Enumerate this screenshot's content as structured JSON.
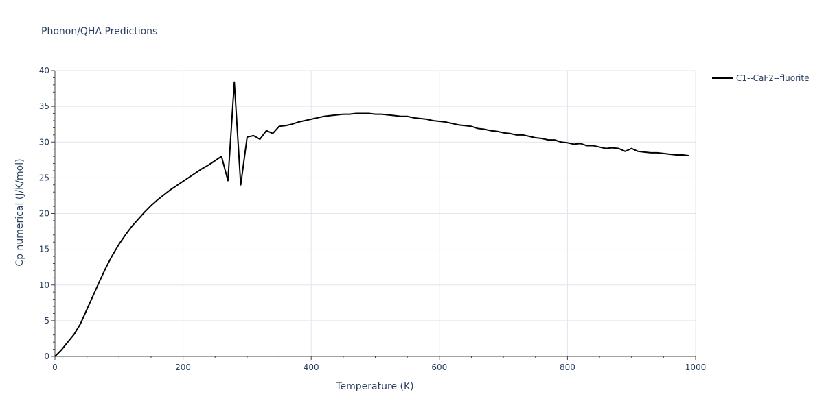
{
  "chart_data": {
    "type": "line",
    "title": "Phonon/QHA Predictions",
    "xlabel": "Temperature (K)",
    "ylabel": "Cp numerical (J/K/mol)",
    "xlim": [
      0,
      1000
    ],
    "ylim": [
      0,
      40
    ],
    "x_ticks": [
      0,
      200,
      400,
      600,
      800,
      1000
    ],
    "y_ticks": [
      0,
      5,
      10,
      15,
      20,
      25,
      30,
      35,
      40
    ],
    "grid": true,
    "legend_position": "top-right",
    "series": [
      {
        "name": "C1--CaF2--fluorite",
        "color": "#000000",
        "points": [
          [
            0,
            0
          ],
          [
            10,
            0.9
          ],
          [
            20,
            2.0
          ],
          [
            30,
            3.1
          ],
          [
            40,
            4.6
          ],
          [
            50,
            6.6
          ],
          [
            60,
            8.6
          ],
          [
            70,
            10.6
          ],
          [
            80,
            12.5
          ],
          [
            90,
            14.2
          ],
          [
            100,
            15.7
          ],
          [
            110,
            17.0
          ],
          [
            120,
            18.2
          ],
          [
            130,
            19.2
          ],
          [
            140,
            20.2
          ],
          [
            150,
            21.1
          ],
          [
            160,
            21.9
          ],
          [
            170,
            22.6
          ],
          [
            180,
            23.3
          ],
          [
            190,
            23.9
          ],
          [
            200,
            24.5
          ],
          [
            210,
            25.1
          ],
          [
            220,
            25.7
          ],
          [
            230,
            26.3
          ],
          [
            240,
            26.8
          ],
          [
            250,
            27.4
          ],
          [
            260,
            28.0
          ],
          [
            270,
            24.6
          ],
          [
            280,
            38.4
          ],
          [
            290,
            24.0
          ],
          [
            300,
            30.7
          ],
          [
            310,
            30.9
          ],
          [
            320,
            30.4
          ],
          [
            330,
            31.6
          ],
          [
            340,
            31.2
          ],
          [
            350,
            32.2
          ],
          [
            360,
            32.3
          ],
          [
            370,
            32.5
          ],
          [
            380,
            32.8
          ],
          [
            390,
            33.0
          ],
          [
            400,
            33.2
          ],
          [
            410,
            33.4
          ],
          [
            420,
            33.6
          ],
          [
            430,
            33.7
          ],
          [
            440,
            33.8
          ],
          [
            450,
            33.9
          ],
          [
            460,
            33.9
          ],
          [
            470,
            34.0
          ],
          [
            480,
            34.0
          ],
          [
            490,
            34.0
          ],
          [
            500,
            33.9
          ],
          [
            510,
            33.9
          ],
          [
            520,
            33.8
          ],
          [
            530,
            33.7
          ],
          [
            540,
            33.6
          ],
          [
            550,
            33.6
          ],
          [
            560,
            33.4
          ],
          [
            570,
            33.3
          ],
          [
            580,
            33.2
          ],
          [
            590,
            33.0
          ],
          [
            600,
            32.9
          ],
          [
            610,
            32.8
          ],
          [
            620,
            32.6
          ],
          [
            630,
            32.4
          ],
          [
            640,
            32.3
          ],
          [
            650,
            32.2
          ],
          [
            660,
            31.9
          ],
          [
            670,
            31.8
          ],
          [
            680,
            31.6
          ],
          [
            690,
            31.5
          ],
          [
            700,
            31.3
          ],
          [
            710,
            31.2
          ],
          [
            720,
            31.0
          ],
          [
            730,
            31.0
          ],
          [
            740,
            30.8
          ],
          [
            750,
            30.6
          ],
          [
            760,
            30.5
          ],
          [
            770,
            30.3
          ],
          [
            780,
            30.3
          ],
          [
            790,
            30.0
          ],
          [
            800,
            29.9
          ],
          [
            810,
            29.7
          ],
          [
            820,
            29.8
          ],
          [
            830,
            29.5
          ],
          [
            840,
            29.5
          ],
          [
            850,
            29.3
          ],
          [
            860,
            29.1
          ],
          [
            870,
            29.2
          ],
          [
            880,
            29.1
          ],
          [
            890,
            28.7
          ],
          [
            900,
            29.1
          ],
          [
            910,
            28.7
          ],
          [
            920,
            28.6
          ],
          [
            930,
            28.5
          ],
          [
            940,
            28.5
          ],
          [
            950,
            28.4
          ],
          [
            960,
            28.3
          ],
          [
            970,
            28.2
          ],
          [
            980,
            28.2
          ],
          [
            990,
            28.1
          ]
        ]
      }
    ]
  }
}
